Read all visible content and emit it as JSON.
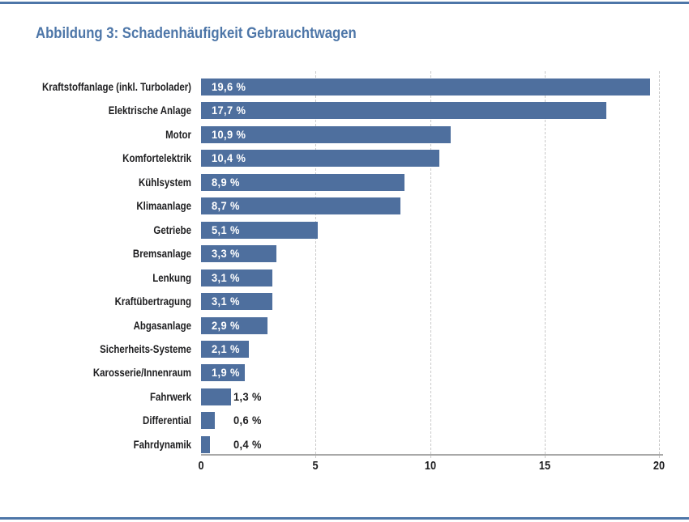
{
  "page": {
    "title": "Abbildung 3: Schadenhäufigkeit Gebrauchtwagen"
  },
  "colors": {
    "accent_blue": "#4d76a8",
    "bar_blue": "#4e6f9e",
    "text_dark": "#1d1d1f",
    "grid_gray": "#c9c9c9",
    "axis_gray": "#a9a9a8",
    "value_inside_white": "#ffffff"
  },
  "chart_data": {
    "type": "bar",
    "orientation": "horizontal",
    "title": "Abbildung 3: Schadenhäufigkeit Gebrauchtwagen",
    "xlabel": "",
    "ylabel": "",
    "unit": "%",
    "xlim": [
      0,
      20
    ],
    "x_ticks": [
      "0",
      "5",
      "10",
      "15",
      "20"
    ],
    "grid": "vertical dashed gridlines at 5, 10, 15, 20",
    "legend": "none",
    "categories": [
      "Kraftstoffanlage (inkl. Turbolader)",
      "Elektrische Anlage",
      "Motor",
      "Komfortelektrik",
      "Kühlsystem",
      "Klimaanlage",
      "Getriebe",
      "Bremsanlage",
      "Lenkung",
      "Kraftübertragung",
      "Abgasanlage",
      "Sicherheits-Systeme",
      "Karosserie/Innenraum",
      "Fahrwerk",
      "Differential",
      "Fahrdynamik"
    ],
    "values": [
      19.6,
      17.7,
      10.9,
      10.4,
      8.9,
      8.7,
      5.1,
      3.3,
      3.1,
      3.1,
      2.9,
      2.1,
      1.9,
      1.3,
      0.6,
      0.4
    ],
    "value_labels": [
      "19,6 %",
      "17,7 %",
      "10,9 %",
      "10,4 %",
      "8,9 %",
      "8,7 %",
      "5,1 %",
      "3,3 %",
      "3,1 %",
      "3,1 %",
      "2,9 %",
      "2,1 %",
      "1,9 %",
      "1,3 %",
      "0,6 %",
      "0,4 %"
    ],
    "value_label_placement": "inside bar (white) when value >= 1.5, outside bar (dark) otherwise"
  }
}
